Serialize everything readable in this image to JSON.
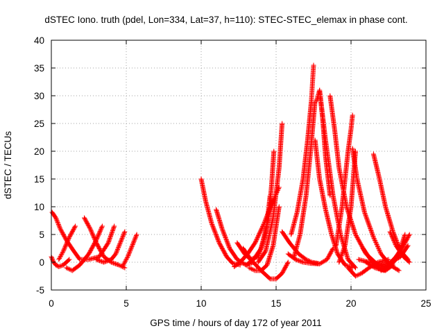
{
  "chart_data": {
    "type": "scatter",
    "title": "dSTEC Iono. truth (pdel, Lon=334, Lat=37, h=110): STEC-STEC_elemax in phase cont.",
    "xlabel": "GPS time / hours of day 172 of year 2011",
    "ylabel": "dSTEC  / TECUs",
    "xlim": [
      0,
      25
    ],
    "ylim": [
      -5,
      40
    ],
    "xticks": [
      0,
      5,
      10,
      15,
      20,
      25
    ],
    "yticks": [
      -5,
      0,
      5,
      10,
      15,
      20,
      25,
      30,
      35,
      40
    ],
    "grid": true,
    "legend": "none",
    "marker": "plus",
    "color": "#ff0000",
    "series": [
      {
        "x": [
          0.0,
          0.15,
          0.3,
          0.5,
          0.8,
          1.2
        ],
        "y": [
          1.0,
          0.0,
          -0.5,
          -0.8,
          -0.5,
          0.5
        ]
      },
      {
        "x": [
          0.05,
          0.3,
          0.6,
          1.0,
          1.5,
          1.9
        ],
        "y": [
          9.0,
          8.0,
          6.0,
          4.0,
          2.0,
          0.5
        ]
      },
      {
        "x": [
          0.5,
          0.8,
          1.2,
          1.6
        ],
        "y": [
          0.5,
          2.0,
          4.5,
          6.5
        ]
      },
      {
        "x": [
          1.0,
          1.4,
          1.9,
          2.5,
          3.0,
          3.4
        ],
        "y": [
          -1.0,
          -1.5,
          -0.5,
          1.5,
          4.0,
          6.5
        ]
      },
      {
        "x": [
          2.2,
          2.6,
          3.0,
          3.5,
          4.0,
          4.5,
          4.9
        ],
        "y": [
          8.0,
          6.0,
          3.5,
          1.0,
          0.0,
          -0.5,
          -1.0
        ]
      },
      {
        "x": [
          2.0,
          2.5,
          3.2,
          3.8,
          4.2
        ],
        "y": [
          0.5,
          0.5,
          1.0,
          3.5,
          6.5
        ]
      },
      {
        "x": [
          3.0,
          3.5,
          4.0,
          4.3,
          4.6,
          4.9
        ],
        "y": [
          0.5,
          0.0,
          0.5,
          1.5,
          3.5,
          5.5
        ]
      },
      {
        "x": [
          4.8,
          5.1,
          5.4,
          5.7
        ],
        "y": [
          -0.5,
          1.0,
          3.0,
          5.0
        ]
      },
      {
        "x": [
          10.0,
          10.3,
          10.7,
          11.2,
          11.7,
          12.1,
          12.6
        ],
        "y": [
          15.0,
          11.0,
          7.0,
          3.5,
          1.0,
          -0.2,
          -0.5
        ]
      },
      {
        "x": [
          11.0,
          11.4,
          11.9,
          12.4,
          13.0,
          13.5
        ],
        "y": [
          9.5,
          6.0,
          2.5,
          0.5,
          -0.5,
          0.0
        ]
      },
      {
        "x": [
          12.2,
          12.6,
          13.1,
          13.6,
          14.2,
          14.7,
          15.2
        ],
        "y": [
          -0.8,
          0.0,
          1.5,
          3.5,
          7.0,
          10.5,
          13.5
        ]
      },
      {
        "x": [
          12.4,
          12.9,
          13.3,
          13.8,
          14.3,
          14.6
        ],
        "y": [
          3.5,
          1.5,
          0.5,
          1.0,
          5.0,
          12.0
        ]
      },
      {
        "x": [
          13.0,
          13.5,
          14.0,
          14.5,
          14.7,
          14.85
        ],
        "y": [
          -0.5,
          0.5,
          2.5,
          8.0,
          14.0,
          20.0
        ]
      },
      {
        "x": [
          13.2,
          13.6,
          14.0,
          14.4,
          14.8,
          15.2
        ],
        "y": [
          -1.0,
          -1.5,
          -1.5,
          -0.5,
          3.0,
          10.0
        ]
      },
      {
        "x": [
          13.8,
          14.3,
          14.8,
          15.2,
          15.4
        ],
        "y": [
          0.0,
          2.0,
          8.0,
          17.0,
          25.0
        ]
      },
      {
        "x": [
          12.8,
          13.3,
          14.0,
          14.6,
          15.0,
          15.4,
          15.8
        ],
        "y": [
          2.5,
          0.5,
          -1.5,
          -3.0,
          -3.0,
          -2.0,
          0.0
        ]
      },
      {
        "x": [
          15.4,
          15.9,
          16.5,
          17.0,
          17.4,
          17.8
        ],
        "y": [
          5.5,
          3.5,
          1.5,
          0.5,
          0.0,
          -0.2
        ]
      },
      {
        "x": [
          15.8,
          16.3,
          16.8,
          17.3,
          17.9,
          18.4,
          18.8
        ],
        "y": [
          1.5,
          0.5,
          0.0,
          -0.2,
          -0.3,
          0.5,
          2.5
        ]
      },
      {
        "x": [
          16.0,
          16.4,
          16.8,
          17.1,
          17.35,
          17.5
        ],
        "y": [
          5.0,
          9.0,
          15.0,
          22.0,
          29.0,
          35.5
        ]
      },
      {
        "x": [
          16.2,
          16.6,
          17.0,
          17.3,
          17.6
        ],
        "y": [
          1.0,
          5.0,
          12.0,
          20.0,
          29.0
        ]
      },
      {
        "x": [
          17.6,
          17.9,
          18.3,
          18.7,
          19.1,
          19.6,
          20.1
        ],
        "y": [
          22.0,
          15.0,
          9.5,
          5.0,
          1.5,
          -0.5,
          -1.0
        ]
      },
      {
        "x": [
          17.7,
          17.9,
          18.1,
          18.3,
          18.6
        ],
        "y": [
          29.0,
          31.0,
          26.0,
          19.0,
          12.0
        ]
      },
      {
        "x": [
          17.9,
          18.3,
          18.8,
          19.3,
          19.8,
          20.3
        ],
        "y": [
          31.0,
          22.0,
          12.0,
          5.0,
          0.5,
          -1.0
        ]
      },
      {
        "x": [
          18.6,
          18.9,
          19.2,
          19.7,
          20.3,
          21.0,
          21.8,
          22.5
        ],
        "y": [
          30.0,
          24.0,
          17.0,
          10.0,
          5.0,
          1.5,
          -0.5,
          -1.0
        ]
      },
      {
        "x": [
          19.0,
          19.4,
          19.8,
          20.0,
          20.1
        ],
        "y": [
          3.0,
          10.0,
          20.0,
          24.0,
          26.5
        ]
      },
      {
        "x": [
          19.2,
          19.6,
          20.0,
          20.3
        ],
        "y": [
          0.0,
          3.0,
          10.0,
          20.0
        ]
      },
      {
        "x": [
          20.1,
          20.4,
          20.9,
          21.5,
          22.0,
          22.6,
          23.2
        ],
        "y": [
          20.5,
          15.0,
          9.0,
          4.5,
          1.5,
          -0.5,
          -1.5
        ]
      },
      {
        "x": [
          19.8,
          20.3,
          20.7,
          21.2,
          21.8,
          22.5
        ],
        "y": [
          -1.0,
          -2.5,
          -2.0,
          -1.0,
          0.0,
          0.5
        ]
      },
      {
        "x": [
          20.5,
          21.2,
          22.0,
          22.7,
          23.3,
          23.8
        ],
        "y": [
          0.5,
          0.0,
          -0.5,
          0.0,
          1.0,
          3.0
        ]
      },
      {
        "x": [
          21.5,
          21.9,
          22.3,
          22.8,
          23.3,
          23.8
        ],
        "y": [
          19.5,
          15.0,
          10.0,
          5.5,
          2.0,
          0.5
        ]
      },
      {
        "x": [
          21.0,
          21.6,
          22.2,
          22.7,
          23.2,
          23.6
        ],
        "y": [
          0.0,
          -1.0,
          -1.5,
          -0.5,
          1.5,
          5.0
        ]
      },
      {
        "x": [
          22.0,
          22.5,
          23.0,
          23.5,
          23.9
        ],
        "y": [
          -1.5,
          -0.5,
          1.0,
          3.0,
          5.0
        ]
      },
      {
        "x": [
          22.6,
          23.0,
          23.5,
          23.9
        ],
        "y": [
          5.5,
          3.0,
          1.0,
          0.0
        ]
      },
      {
        "x": [
          20.8,
          21.3,
          21.8,
          22.3,
          22.8
        ],
        "y": [
          2.5,
          0.5,
          -1.0,
          -1.5,
          -0.5
        ]
      }
    ]
  }
}
